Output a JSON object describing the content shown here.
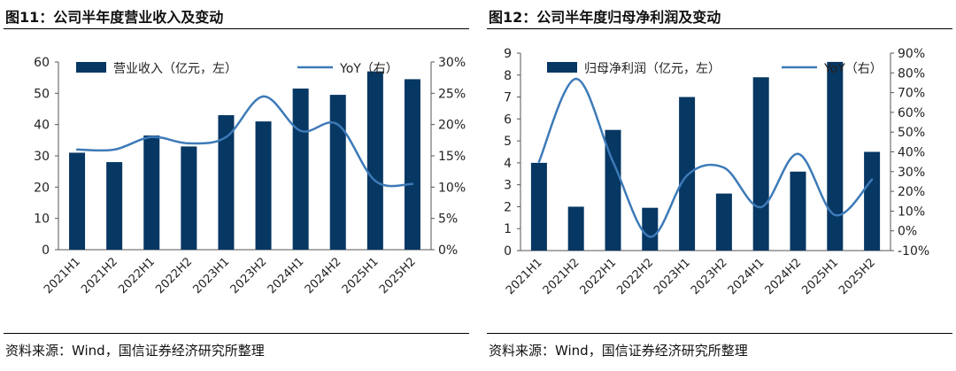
{
  "figures": [
    {
      "title": "图11：公司半年度营业收入及变动",
      "source": "资料来源：Wind，国信证券经济研究所整理"
    },
    {
      "title": "图12：公司半年度归母净利润及变动",
      "source": "资料来源：Wind，国信证券经济研究所整理"
    }
  ],
  "colors": {
    "bar": "#073763",
    "line": "#3d7ab8"
  },
  "chart_data": [
    {
      "type": "bar+line",
      "categories": [
        "2021H1",
        "2021H2",
        "2022H1",
        "2022H2",
        "2023H1",
        "2023H2",
        "2024H1",
        "2024H2",
        "2025H1",
        "2025H2"
      ],
      "series": [
        {
          "name": "营业收入（亿元，左）",
          "type": "bar",
          "axis": "left",
          "values": [
            31,
            28,
            36.5,
            33,
            43,
            41,
            51.5,
            49.5,
            57,
            54.5
          ]
        },
        {
          "name": "YoY（右）",
          "type": "line",
          "axis": "right",
          "values": [
            16,
            16,
            18,
            17,
            18,
            24.5,
            19,
            20,
            11,
            10.5
          ]
        }
      ],
      "y_left": {
        "min": 0,
        "max": 60,
        "ticks": [
          0,
          10,
          20,
          30,
          40,
          50,
          60
        ]
      },
      "y_right": {
        "min": 0,
        "max": 30,
        "ticks": [
          0,
          5,
          10,
          15,
          20,
          25,
          30
        ],
        "tick_labels": [
          "0%",
          "5%",
          "10%",
          "15%",
          "20%",
          "25%",
          "30%"
        ]
      },
      "legend": "top"
    },
    {
      "type": "bar+line",
      "categories": [
        "2021H1",
        "2021H2",
        "2022H1",
        "2022H2",
        "2023H1",
        "2023H2",
        "2024H1",
        "2024H2",
        "2025H1",
        "2025H2"
      ],
      "series": [
        {
          "name": "归母净利润（亿元，左）",
          "type": "bar",
          "axis": "left",
          "values": [
            4,
            2,
            5.5,
            1.95,
            7,
            2.6,
            7.9,
            3.6,
            8.6,
            4.5
          ]
        },
        {
          "name": "YoY（右）",
          "type": "line",
          "axis": "right",
          "values": [
            35,
            77,
            35,
            -3,
            28,
            32,
            12,
            39,
            8,
            26
          ]
        }
      ],
      "y_left": {
        "min": 0,
        "max": 9,
        "ticks": [
          0,
          1,
          2,
          3,
          4,
          5,
          6,
          7,
          8,
          9
        ]
      },
      "y_right": {
        "min": -10,
        "max": 90,
        "ticks": [
          -10,
          0,
          10,
          20,
          30,
          40,
          50,
          60,
          70,
          80,
          90
        ],
        "tick_labels": [
          "-10%",
          "0%",
          "10%",
          "20%",
          "30%",
          "40%",
          "50%",
          "60%",
          "70%",
          "80%",
          "90%"
        ]
      },
      "legend": "top"
    }
  ]
}
